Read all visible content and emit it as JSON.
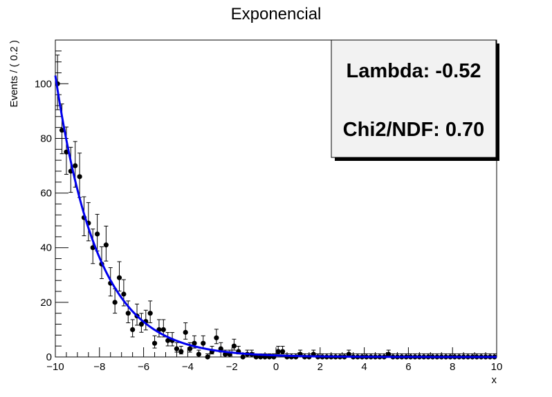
{
  "chart_data": {
    "type": "scatter",
    "title": "Exponencial",
    "xlabel": "x",
    "ylabel": "Events / ( 0.2 )",
    "xlim": [
      -10,
      10
    ],
    "ylim": [
      0,
      116
    ],
    "xticks": [
      -10,
      -8,
      -6,
      -4,
      -2,
      0,
      2,
      4,
      6,
      8,
      10
    ],
    "xtick_labels": [
      "−10",
      "−8",
      "−6",
      "−4",
      "−2",
      "0",
      "2",
      "4",
      "6",
      "8",
      "10"
    ],
    "yticks": [
      0,
      20,
      40,
      60,
      80,
      100
    ],
    "ytick_labels": [
      "0",
      "20",
      "40",
      "60",
      "80",
      "100"
    ],
    "grid": false,
    "series": [
      {
        "style": "points with error bars",
        "color": "#000000",
        "x": [
          -9.9,
          -9.7,
          -9.5,
          -9.3,
          -9.1,
          -8.9,
          -8.7,
          -8.5,
          -8.3,
          -8.1,
          -7.9,
          -7.7,
          -7.5,
          -7.3,
          -7.1,
          -6.9,
          -6.7,
          -6.5,
          -6.3,
          -6.1,
          -5.9,
          -5.7,
          -5.5,
          -5.3,
          -5.1,
          -4.9,
          -4.7,
          -4.5,
          -4.3,
          -4.1,
          -3.9,
          -3.7,
          -3.5,
          -3.3,
          -3.1,
          -2.9,
          -2.7,
          -2.5,
          -2.3,
          -2.1,
          -1.9,
          -1.7,
          -1.5,
          -1.3,
          -1.1,
          -0.9,
          -0.7,
          -0.5,
          -0.3,
          -0.1,
          0.1,
          0.3,
          0.5,
          0.7,
          0.9,
          1.1,
          1.3,
          1.5,
          1.7,
          1.9,
          2.1,
          2.3,
          2.5,
          2.7,
          2.9,
          3.1,
          3.3,
          3.5,
          3.7,
          3.9,
          4.1,
          4.3,
          4.5,
          4.7,
          4.9,
          5.1,
          5.3,
          5.5,
          5.7,
          5.9,
          6.1,
          6.3,
          6.5,
          6.7,
          6.9,
          7.1,
          7.3,
          7.5,
          7.7,
          7.9,
          8.1,
          8.3,
          8.5,
          8.7,
          8.9,
          9.1,
          9.3,
          9.5,
          9.7,
          9.9
        ],
        "y": [
          100,
          83,
          75,
          68,
          70,
          66,
          51,
          49,
          40,
          45,
          34,
          41,
          27,
          20,
          29,
          23,
          16,
          10,
          15,
          12,
          13,
          16,
          5,
          10,
          10,
          6,
          6,
          3,
          2,
          9,
          3,
          5,
          1,
          5,
          0,
          2,
          7,
          3,
          1,
          1,
          4,
          2,
          0,
          1,
          1,
          0,
          0,
          0,
          0,
          0,
          2,
          2,
          0,
          0,
          0,
          1,
          0,
          0,
          1,
          0,
          0,
          0,
          0,
          0,
          0,
          0,
          1,
          0,
          0,
          0,
          0,
          0,
          0,
          0,
          0,
          1,
          0,
          0,
          0,
          0,
          0,
          0,
          0,
          0,
          0,
          0,
          0,
          0,
          0,
          0,
          0,
          0,
          0,
          0,
          0,
          0,
          0,
          0,
          0,
          0
        ]
      },
      {
        "style": "fit curve",
        "color": "#0000ee",
        "function": "exponential",
        "lambda": -0.52,
        "amplitude_at_xmin": 103
      }
    ],
    "stats_box": {
      "lines": [
        "Lambda: -0.52",
        "Chi2/NDF: 0.70"
      ],
      "placement": "top-right"
    }
  }
}
